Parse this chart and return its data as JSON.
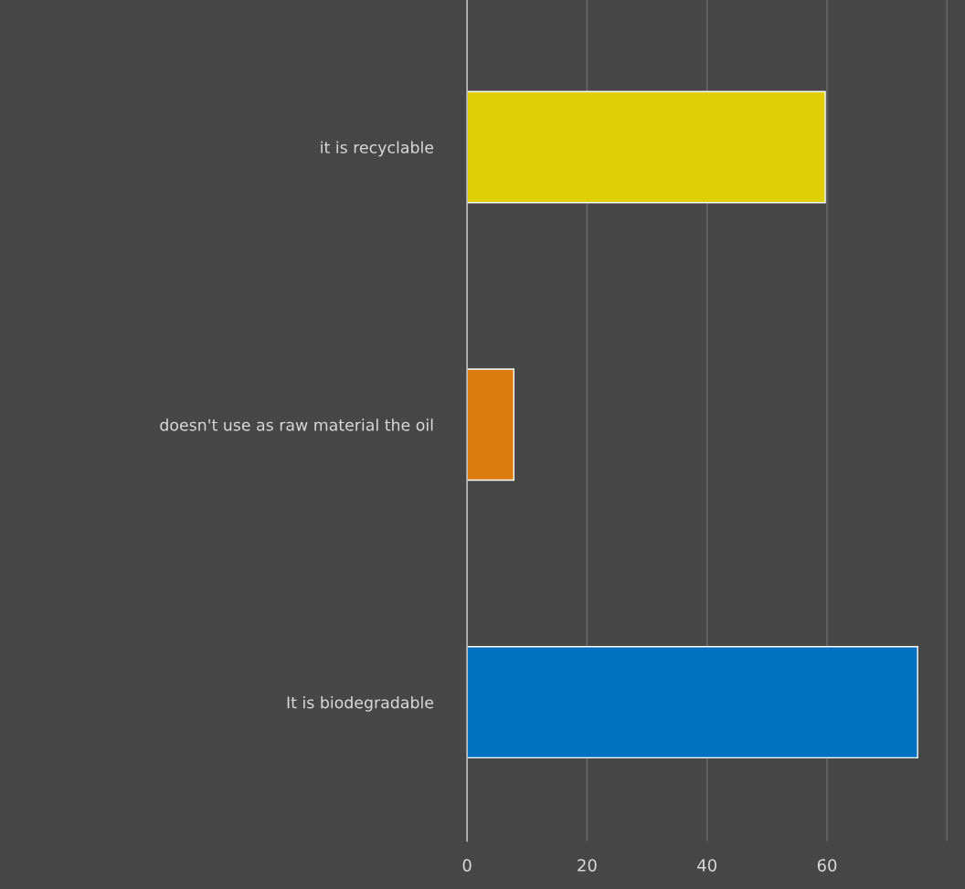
{
  "chart_data": {
    "type": "bar",
    "orientation": "horizontal",
    "categories": [
      "it is recyclable",
      "doesn't use as raw material the oil",
      "It is biodegradable"
    ],
    "values": [
      59.7,
      7.8,
      75.1
    ],
    "colors": [
      "#e0cf06",
      "#dd7c0e",
      "#0070c0"
    ],
    "xlim": [
      0,
      83
    ],
    "xticks": [
      0,
      20,
      40,
      60,
      {
        "value": 80,
        "label": null
      }
    ],
    "grid": "x"
  }
}
